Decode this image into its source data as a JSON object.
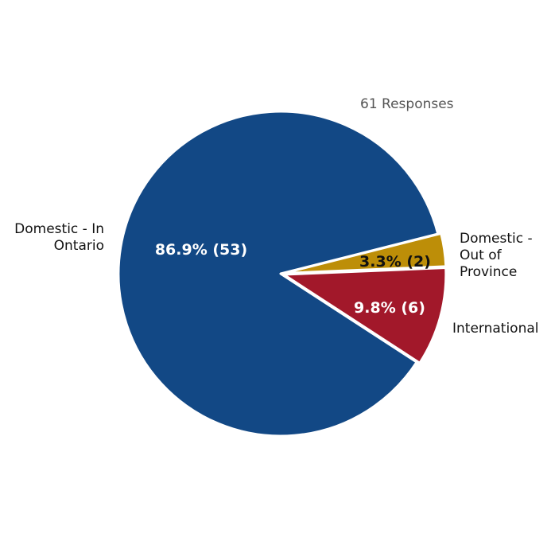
{
  "chart_data": {
    "type": "pie",
    "subtitle": "61 Responses",
    "total": 61,
    "slices": [
      {
        "name": "Domestic - In Ontario",
        "label_lines": [
          "Domestic - In",
          "Ontario"
        ],
        "value": 53,
        "percent": 86.9,
        "data_label": "86.9% (53)",
        "color": "#124885",
        "label_color": "#ffffff"
      },
      {
        "name": "International",
        "label_lines": [
          "International"
        ],
        "value": 6,
        "percent": 9.8,
        "data_label": "9.8% (6)",
        "color": "#a2182a",
        "label_color": "#ffffff"
      },
      {
        "name": "Domestic - Out of Province",
        "label_lines": [
          "Domestic -",
          "Out of",
          "Province"
        ],
        "value": 2,
        "percent": 3.3,
        "data_label": "3.3% (2)",
        "color": "#bd8e08",
        "label_color": "#111111"
      }
    ],
    "slice_border_color": "#ffffff"
  }
}
